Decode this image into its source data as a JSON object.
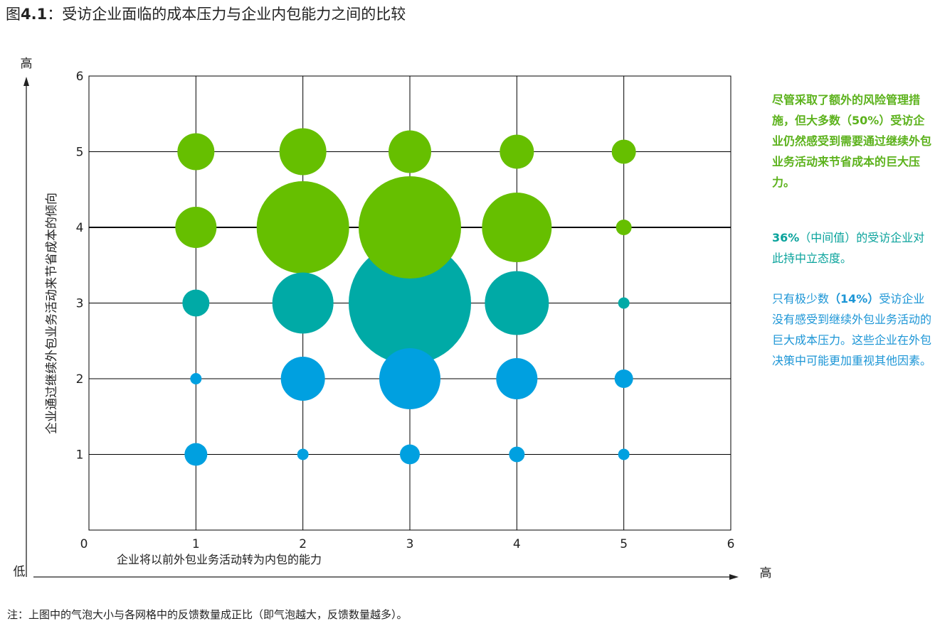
{
  "title": {
    "prefix": "图",
    "number": "4.1",
    "text": "：受访企业面临的成本压力与企业内包能力之间的比较"
  },
  "colors": {
    "green": "#66bf00",
    "teal": "#00aaa6",
    "blue": "#00a0e0",
    "grid": "#000000"
  },
  "chart_data": {
    "type": "scatter",
    "subtype": "bubble",
    "xlabel": "企业将以前外包业务活动转为内包的能力",
    "ylabel": "企业通过继续外包业务活动来节省成本的倾向",
    "xlim": [
      0,
      6
    ],
    "ylim": [
      0,
      6
    ],
    "x_ticks": [
      "0",
      "1",
      "2",
      "3",
      "4",
      "5",
      "6"
    ],
    "y_ticks": [
      "1",
      "2",
      "3",
      "4",
      "5",
      "6"
    ],
    "axis_low_label": "低",
    "axis_high_x_label": "高",
    "axis_high_y_label": "高",
    "grid": true,
    "size_meaning": "气泡大小与各网格中的反馈数量成正比",
    "series": [
      {
        "color": "green",
        "points": [
          {
            "x": 1,
            "y": 5,
            "size": 26
          },
          {
            "x": 2,
            "y": 5,
            "size": 33
          },
          {
            "x": 3,
            "y": 5,
            "size": 30
          },
          {
            "x": 4,
            "y": 5,
            "size": 24
          },
          {
            "x": 5,
            "y": 5,
            "size": 17
          },
          {
            "x": 1,
            "y": 4,
            "size": 29
          },
          {
            "x": 2,
            "y": 4,
            "size": 65
          },
          {
            "x": 3,
            "y": 4,
            "size": 72
          },
          {
            "x": 4,
            "y": 4,
            "size": 49
          },
          {
            "x": 5,
            "y": 4,
            "size": 11
          }
        ]
      },
      {
        "color": "teal",
        "points": [
          {
            "x": 1,
            "y": 3,
            "size": 19
          },
          {
            "x": 2,
            "y": 3,
            "size": 43
          },
          {
            "x": 3,
            "y": 3,
            "size": 86
          },
          {
            "x": 4,
            "y": 3,
            "size": 45
          },
          {
            "x": 5,
            "y": 3,
            "size": 8
          }
        ]
      },
      {
        "color": "blue",
        "points": [
          {
            "x": 1,
            "y": 2,
            "size": 8
          },
          {
            "x": 2,
            "y": 2,
            "size": 31
          },
          {
            "x": 3,
            "y": 2,
            "size": 43
          },
          {
            "x": 4,
            "y": 2,
            "size": 29
          },
          {
            "x": 5,
            "y": 2,
            "size": 13
          },
          {
            "x": 1,
            "y": 1,
            "size": 16
          },
          {
            "x": 2,
            "y": 1,
            "size": 8
          },
          {
            "x": 3,
            "y": 1,
            "size": 14
          },
          {
            "x": 4,
            "y": 1,
            "size": 11
          },
          {
            "x": 5,
            "y": 1,
            "size": 8
          }
        ]
      }
    ]
  },
  "side_text": {
    "green": {
      "lead": "尽管采取了额外的风险管理措施，但大多数",
      "pct": "（50%）",
      "rest": "受访企业仍然感受到需要通过继续外包业务活动来节省成本的巨大压力。"
    },
    "teal": {
      "pct": "36%",
      "rest": "（中间值）的受访企业对此持中立态度。"
    },
    "blue": {
      "lead": "只有极少数",
      "pct": "（14%）",
      "rest": "受访企业没有感受到继续外包业务活动的巨大成本压力。这些企业在外包决策中可能更加重视其他因素。"
    }
  },
  "footnote": "注：上图中的气泡大小与各网格中的反馈数量成正比（即气泡越大，反馈数量越多）。"
}
